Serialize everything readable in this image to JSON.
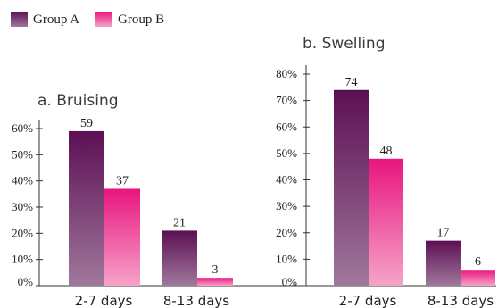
{
  "legend": [
    {
      "name": "Group A",
      "color_top": "#5c0f54",
      "color_bottom": "#a0789c"
    },
    {
      "name": "Group B",
      "color_top": "#e8157f",
      "color_bottom": "#f6a3c8"
    }
  ],
  "chart_data": [
    {
      "type": "bar",
      "title": "a. Bruising",
      "categories": [
        "2-7 days",
        "8-13 days"
      ],
      "series": [
        {
          "name": "Group A",
          "values": [
            59,
            21
          ]
        },
        {
          "name": "Group B",
          "values": [
            37,
            3
          ]
        }
      ],
      "ylim": [
        0,
        60
      ],
      "yticks": [
        "0%",
        "10%",
        "20%",
        "30%",
        "40%",
        "50%",
        "60%"
      ],
      "legend_position": "top-left"
    },
    {
      "type": "bar",
      "title": "b. Swelling",
      "categories": [
        "2-7 days",
        "8-13 days"
      ],
      "series": [
        {
          "name": "Group A",
          "values": [
            74,
            17
          ]
        },
        {
          "name": "Group B",
          "values": [
            48,
            6
          ]
        }
      ],
      "ylim": [
        0,
        80
      ],
      "yticks": [
        "0%",
        "10%",
        "20%",
        "30%",
        "40%",
        "50%",
        "60%",
        "70%",
        "80%"
      ]
    }
  ]
}
